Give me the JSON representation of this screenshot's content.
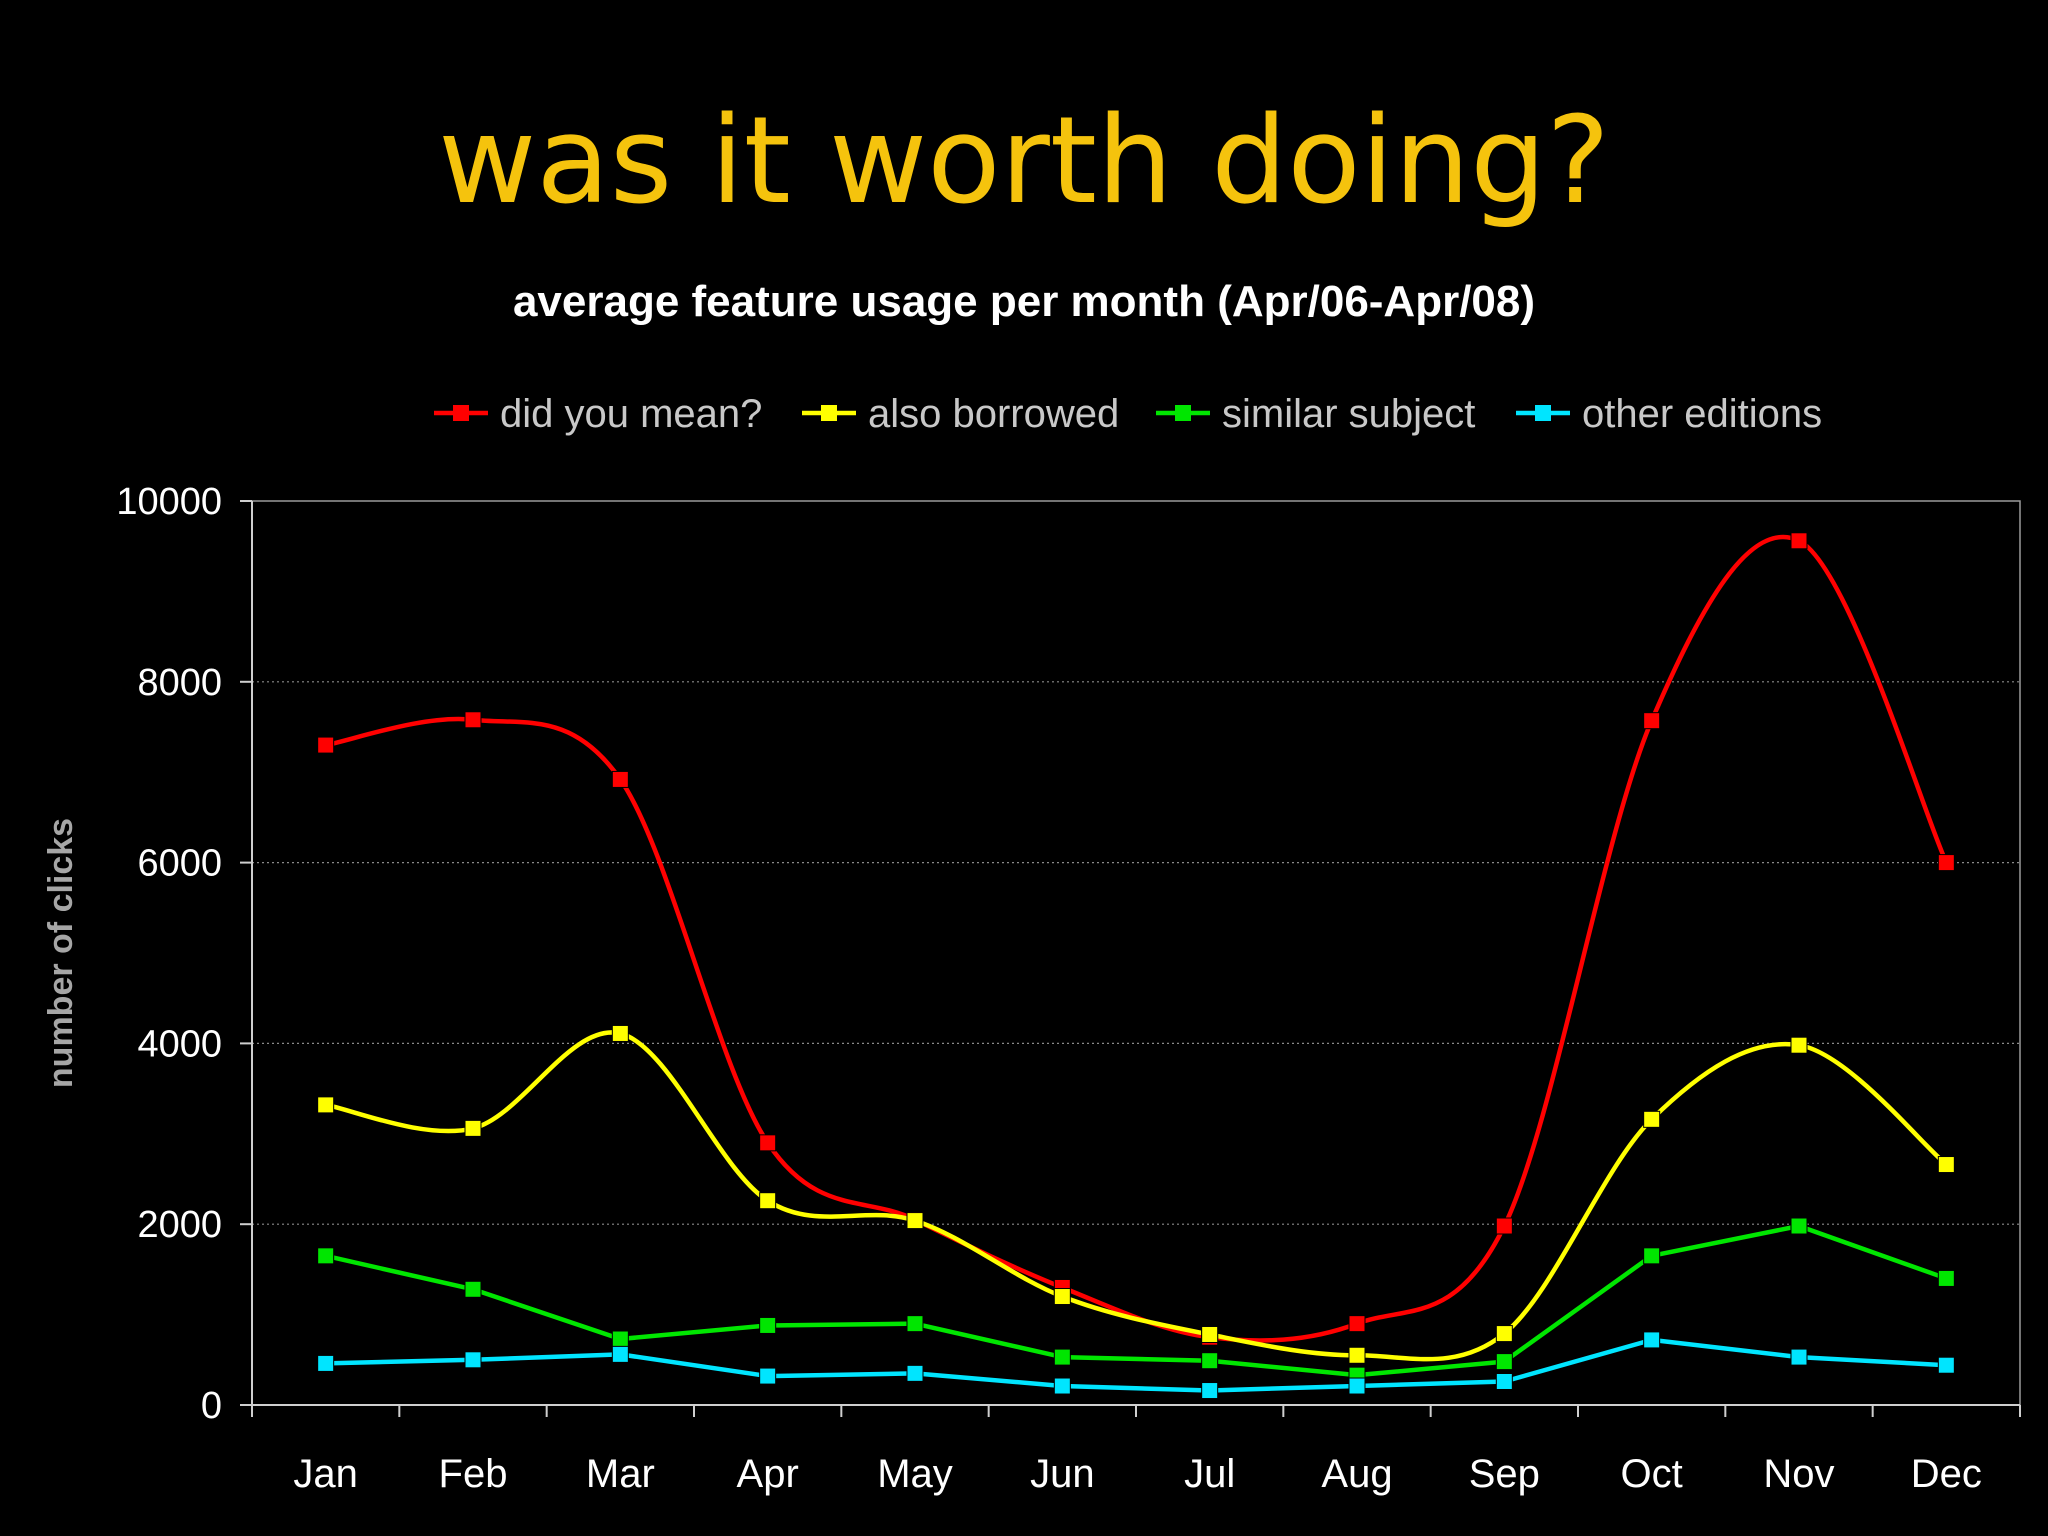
{
  "slide": {
    "title": "was it worth doing?",
    "title_color": "#f5c30d",
    "background": "#000000"
  },
  "chart_data": {
    "type": "line",
    "title": "average feature usage per month (Apr/06-Apr/08)",
    "xlabel": "",
    "ylabel": "number of clicks",
    "ylim": [
      0,
      10000
    ],
    "yticks": [
      "0",
      "2000",
      "4000",
      "6000",
      "8000",
      "10000"
    ],
    "grid": "horizontal dotted",
    "legend_position": "top",
    "categories": [
      "Jan",
      "Feb",
      "Mar",
      "Apr",
      "May",
      "Jun",
      "Jul",
      "Aug",
      "Sep",
      "Oct",
      "Nov",
      "Dec"
    ],
    "series": [
      {
        "name": "did you mean?",
        "color": "#ff0000",
        "values": [
          7300,
          7580,
          6920,
          2900,
          2050,
          1300,
          750,
          900,
          1980,
          7570,
          9560,
          6000
        ]
      },
      {
        "name": "also borrowed",
        "color": "#ffff00",
        "values": [
          3320,
          3060,
          4110,
          2260,
          2040,
          1200,
          780,
          550,
          790,
          3160,
          3980,
          2660
        ]
      },
      {
        "name": "similar subject",
        "color": "#00e600",
        "values": [
          1650,
          1280,
          730,
          880,
          900,
          530,
          490,
          330,
          480,
          1650,
          1980,
          1400
        ]
      },
      {
        "name": "other editions",
        "color": "#00e5ff",
        "values": [
          460,
          500,
          560,
          320,
          350,
          210,
          160,
          210,
          260,
          720,
          530,
          440
        ]
      }
    ]
  }
}
